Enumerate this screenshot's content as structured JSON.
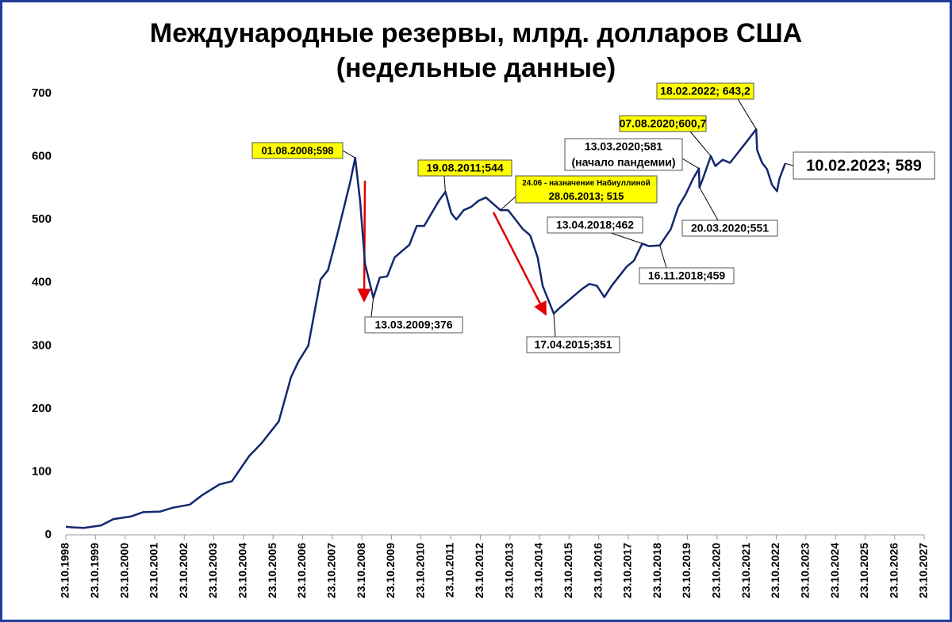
{
  "chart_data": {
    "type": "line",
    "title": [
      "Международные резервы, млрд. долларов США",
      "(недельные данные)"
    ],
    "x": [
      "23.10.1998",
      "01.01.1999",
      "01.06.1999",
      "01.01.2000",
      "01.06.2000",
      "01.01.2001",
      "01.06.2001",
      "01.01.2002",
      "01.06.2002",
      "01.01.2003",
      "01.06.2003",
      "01.01.2004",
      "01.06.2004",
      "01.01.2005",
      "01.06.2005",
      "01.01.2006",
      "01.06.2006",
      "01.09.2006",
      "01.01.2007",
      "01.06.2007",
      "01.09.2007",
      "01.01.2008",
      "01.06.2008",
      "01.08.2008",
      "01.10.2008",
      "01.12.2008",
      "13.03.2009",
      "01.06.2009",
      "01.09.2009",
      "01.12.2009",
      "01.03.2010",
      "01.06.2010",
      "01.09.2010",
      "01.12.2010",
      "01.03.2011",
      "01.06.2011",
      "19.08.2011",
      "01.11.2011",
      "01.01.2012",
      "01.04.2012",
      "01.07.2012",
      "01.10.2012",
      "01.01.2013",
      "28.06.2013",
      "01.10.2013",
      "01.01.2014",
      "01.04.2014",
      "01.07.2014",
      "01.10.2014",
      "01.12.2014",
      "17.04.2015",
      "01.07.2015",
      "01.10.2015",
      "01.01.2016",
      "01.04.2016",
      "01.07.2016",
      "01.10.2016",
      "01.01.2017",
      "01.04.2017",
      "01.07.2017",
      "01.10.2017",
      "01.01.2018",
      "13.04.2018",
      "01.07.2018",
      "16.11.2018",
      "01.01.2019",
      "01.04.2019",
      "01.07.2019",
      "01.10.2019",
      "01.01.2020",
      "13.03.2020",
      "20.03.2020",
      "01.05.2020",
      "07.08.2020",
      "01.10.2020",
      "01.01.2021",
      "01.04.2021",
      "01.07.2021",
      "01.10.2021",
      "18.02.2022",
      "01.03.2022",
      "01.05.2022",
      "01.07.2022",
      "01.09.2022",
      "01.11.2022",
      "01.12.2022",
      "10.02.2023"
    ],
    "series": [
      {
        "color": "#14286e",
        "values": [
          13,
          12,
          11,
          15,
          25,
          29,
          36,
          37,
          43,
          48,
          63,
          80,
          85,
          125,
          145,
          180,
          250,
          275,
          300,
          405,
          420,
          480,
          560,
          598,
          530,
          430,
          376,
          408,
          410,
          440,
          450,
          460,
          490,
          490,
          510,
          530,
          544,
          510,
          500,
          515,
          520,
          530,
          535,
          515,
          515,
          500,
          485,
          475,
          440,
          395,
          351,
          360,
          370,
          380,
          390,
          398,
          395,
          377,
          395,
          410,
          425,
          435,
          462,
          458,
          459,
          468,
          485,
          520,
          540,
          565,
          581,
          551,
          565,
          600.7,
          585,
          595,
          590,
          605,
          620,
          643.2,
          610,
          590,
          580,
          555,
          545,
          565,
          589
        ]
      }
    ],
    "xlim": [
      "23.10.1998",
      "23.10.2027"
    ],
    "xticks": [
      "23.10.1998",
      "23.10.1999",
      "23.10.2000",
      "23.10.2001",
      "23.10.2002",
      "23.10.2003",
      "23.10.2004",
      "23.10.2005",
      "23.10.2006",
      "23.10.2007",
      "23.10.2008",
      "23.10.2009",
      "23.10.2010",
      "23.10.2011",
      "23.10.2012",
      "23.10.2013",
      "23.10.2014",
      "23.10.2015",
      "23.10.2016",
      "23.10.2017",
      "23.10.2018",
      "23.10.2019",
      "23.10.2020",
      "23.10.2021",
      "23.10.2022",
      "23.10.2023",
      "23.10.2024",
      "23.10.2025",
      "23.10.2026",
      "23.10.2027"
    ],
    "ylim": [
      0,
      700
    ],
    "yticks": [
      0,
      100,
      200,
      300,
      400,
      500,
      600,
      700
    ],
    "annotations": [
      {
        "lines": [
          "01.08.2008;598"
        ],
        "x": "01.08.2008",
        "y": 598,
        "color": "#ffff00"
      },
      {
        "lines": [
          "13.03.2009;376"
        ],
        "x": "13.03.2009",
        "y": 376,
        "color": "#ffffff"
      },
      {
        "lines": [
          "19.08.2011;544"
        ],
        "x": "19.08.2011",
        "y": 544,
        "color": "#ffff00"
      },
      {
        "lines": [
          "24.06  - назначение Набиуллиной",
          "28.06.2013; 515"
        ],
        "x": "28.06.2013",
        "y": 515,
        "color": "#ffff00"
      },
      {
        "lines": [
          "17.04.2015;351"
        ],
        "x": "17.04.2015",
        "y": 351,
        "color": "#ffffff"
      },
      {
        "lines": [
          "13.04.2018;462"
        ],
        "x": "13.04.2018",
        "y": 462,
        "color": "#ffffff"
      },
      {
        "lines": [
          "16.11.2018;459"
        ],
        "x": "16.11.2018",
        "y": 459,
        "color": "#ffffff"
      },
      {
        "lines": [
          "13.03.2020;581",
          "(начало пандемии)"
        ],
        "x": "13.03.2020",
        "y": 581,
        "color": "#ffffff"
      },
      {
        "lines": [
          "20.03.2020;551"
        ],
        "x": "20.03.2020",
        "y": 551,
        "color": "#ffffff"
      },
      {
        "lines": [
          "07.08.2020;600,7"
        ],
        "x": "07.08.2020",
        "y": 600.7,
        "color": "#ffff00"
      },
      {
        "lines": [
          "18.02.2022; 643,2"
        ],
        "x": "18.02.2022",
        "y": 643.2,
        "color": "#ffff00"
      },
      {
        "lines": [
          "10.02.2023; 589"
        ],
        "x": "10.02.2023",
        "y": 589,
        "color": "#ffffff"
      }
    ]
  }
}
